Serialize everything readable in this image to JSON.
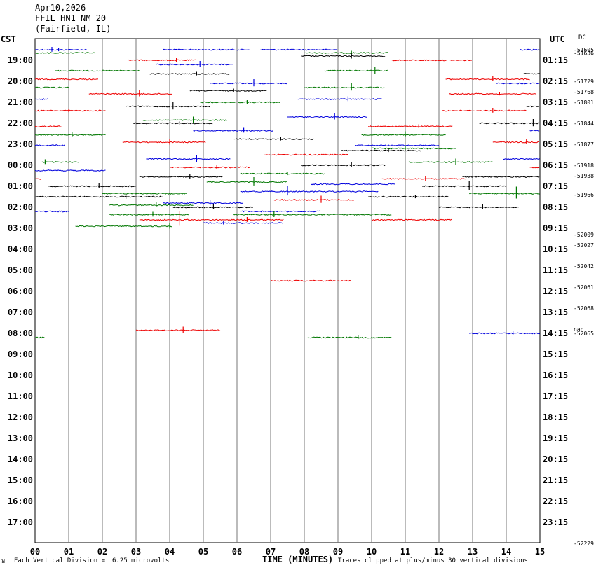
{
  "header": {
    "date": "Apr10,2026",
    "station": "FFIL HN1 NM 20",
    "location": "(Fairfield, IL)"
  },
  "labels": {
    "left_tz": "CST",
    "right_tz": "UTC",
    "dc": "DC",
    "xlabel": "TIME (MINUTES)",
    "footer_left_mark": "ᴚ",
    "vertical_division": "Each Vertical Division =",
    "microvolts": "6.25 microvolts",
    "clip_note": "Traces clipped at plus/minus 30 vertical divisions"
  },
  "chart_data": {
    "type": "line",
    "title": "",
    "xlabel": "TIME (MINUTES)",
    "xlim": [
      0,
      15
    ],
    "x_ticks": [
      "00",
      "01",
      "02",
      "03",
      "04",
      "05",
      "06",
      "07",
      "08",
      "09",
      "10",
      "11",
      "12",
      "13",
      "14",
      "15"
    ],
    "rows_per_hour": 2,
    "left_hour_labels": [
      "19:00",
      "20:00",
      "21:00",
      "22:00",
      "23:00",
      "00:00",
      "01:00",
      "02:00",
      "03:00",
      "04:00",
      "05:00",
      "06:00",
      "07:00",
      "08:00",
      "09:00",
      "10:00",
      "11:00",
      "12:00",
      "13:00",
      "14:00",
      "15:00",
      "16:00",
      "17:00"
    ],
    "right_hour_labels": [
      "01:15",
      "02:15",
      "03:15",
      "04:15",
      "05:15",
      "06:15",
      "07:15",
      "08:15",
      "09:15",
      "10:15",
      "11:15",
      "12:15",
      "13:15",
      "14:15",
      "15:15",
      "16:15",
      "17:15",
      "18:15",
      "19:15",
      "20:15",
      "21:15",
      "22:15",
      "23:15"
    ],
    "dc_offsets": [
      {
        "row": 0,
        "value": "-51605"
      },
      {
        "row": 0.3,
        "value": "-51636"
      },
      {
        "row": 3,
        "value": "-51729"
      },
      {
        "row": 4,
        "value": "-51768"
      },
      {
        "row": 5,
        "value": "-51801"
      },
      {
        "row": 7,
        "value": "-51844"
      },
      {
        "row": 9,
        "value": "-51877"
      },
      {
        "row": 11,
        "value": "-51918"
      },
      {
        "row": 12,
        "value": "-51938"
      },
      {
        "row": 13.8,
        "value": "-51966"
      },
      {
        "row": 17.6,
        "value": "-52009"
      },
      {
        "row": 18.6,
        "value": "-52027"
      },
      {
        "row": 20.6,
        "value": "-52042"
      },
      {
        "row": 22.6,
        "value": "-52061"
      },
      {
        "row": 24.6,
        "value": "-52068"
      },
      {
        "row": 26.6,
        "value": "nan"
      },
      {
        "row": 27,
        "value": "-52065"
      },
      {
        "row": 47,
        "value": "-52229"
      }
    ],
    "series_colors": [
      "#000000",
      "#ee0000",
      "#0000dd",
      "#007700"
    ],
    "traces": [
      {
        "row": 0,
        "color": 2,
        "segments": [
          [
            0.0,
            1.55
          ],
          [
            3.8,
            6.4
          ],
          [
            6.7,
            9.0
          ],
          [
            14.4,
            15.0
          ]
        ],
        "spikes": [
          [
            0.5,
            4
          ],
          [
            0.7,
            3
          ]
        ]
      },
      {
        "row": 0.3,
        "color": 3,
        "segments": [
          [
            0.0,
            1.8
          ],
          [
            8.0,
            10.5
          ]
        ],
        "spikes": [
          [
            9.4,
            3
          ]
        ]
      },
      {
        "row": 0.6,
        "color": 0,
        "segments": [
          [
            7.9,
            10.4
          ]
        ],
        "spikes": [
          [
            9.4,
            5
          ]
        ]
      },
      {
        "row": 1,
        "color": 1,
        "segments": [
          [
            2.75,
            4.8
          ],
          [
            10.6,
            13.0
          ]
        ],
        "spikes": [
          [
            4.2,
            3
          ]
        ]
      },
      {
        "row": 1.4,
        "color": 2,
        "segments": [
          [
            3.6,
            5.9
          ]
        ],
        "spikes": [
          [
            4.9,
            5
          ]
        ]
      },
      {
        "row": 2,
        "color": 3,
        "segments": [
          [
            0.6,
            3.1
          ],
          [
            8.6,
            10.5
          ]
        ],
        "spikes": [
          [
            10.1,
            6
          ]
        ]
      },
      {
        "row": 2.3,
        "color": 0,
        "segments": [
          [
            3.4,
            5.8
          ],
          [
            14.5,
            15.0
          ]
        ],
        "spikes": [
          [
            4.8,
            3
          ]
        ]
      },
      {
        "row": 2.8,
        "color": 1,
        "segments": [
          [
            0.0,
            1.9
          ],
          [
            12.2,
            14.7
          ]
        ],
        "spikes": [
          [
            13.6,
            4
          ]
        ]
      },
      {
        "row": 3.2,
        "color": 2,
        "segments": [
          [
            5.2,
            7.5
          ],
          [
            13.7,
            15.0
          ]
        ],
        "spikes": [
          [
            6.5,
            6
          ]
        ]
      },
      {
        "row": 3.6,
        "color": 3,
        "segments": [
          [
            0.0,
            1.0
          ],
          [
            8.0,
            10.4
          ]
        ],
        "spikes": [
          [
            9.4,
            6
          ]
        ]
      },
      {
        "row": 3.9,
        "color": 0,
        "segments": [
          [
            4.6,
            6.9
          ]
        ],
        "spikes": [
          [
            5.9,
            3
          ]
        ]
      },
      {
        "row": 4.2,
        "color": 1,
        "segments": [
          [
            1.6,
            4.1
          ],
          [
            12.3,
            14.9
          ]
        ],
        "spikes": [
          [
            3.1,
            5
          ],
          [
            13.8,
            3
          ]
        ]
      },
      {
        "row": 4.7,
        "color": 2,
        "segments": [
          [
            0.0,
            0.4
          ],
          [
            7.8,
            10.3
          ]
        ],
        "spikes": [
          [
            9.3,
            4
          ]
        ]
      },
      {
        "row": 5,
        "color": 3,
        "segments": [
          [
            4.9,
            7.3
          ]
        ],
        "spikes": [
          [
            6.3,
            3
          ]
        ]
      },
      {
        "row": 5.4,
        "color": 0,
        "segments": [
          [
            2.7,
            5.2
          ],
          [
            14.6,
            15.0
          ]
        ],
        "spikes": [
          [
            4.1,
            6
          ]
        ]
      },
      {
        "row": 5.8,
        "color": 1,
        "segments": [
          [
            0.0,
            2.1
          ],
          [
            12.1,
            14.6
          ]
        ],
        "spikes": [
          [
            1.0,
            3
          ],
          [
            13.6,
            4
          ]
        ]
      },
      {
        "row": 6.4,
        "color": 2,
        "segments": [
          [
            7.5,
            9.9
          ]
        ],
        "spikes": [
          [
            8.9,
            5
          ]
        ]
      },
      {
        "row": 6.7,
        "color": 3,
        "segments": [
          [
            3.2,
            5.7
          ]
        ],
        "spikes": [
          [
            4.7,
            5
          ]
        ]
      },
      {
        "row": 7,
        "color": 0,
        "segments": [
          [
            2.9,
            5.3
          ],
          [
            13.2,
            15.0
          ]
        ],
        "spikes": [
          [
            4.3,
            3
          ],
          [
            14.8,
            6
          ]
        ]
      },
      {
        "row": 7.3,
        "color": 1,
        "segments": [
          [
            0.0,
            0.8
          ],
          [
            9.9,
            12.4
          ]
        ],
        "spikes": [
          [
            11.4,
            3
          ]
        ]
      },
      {
        "row": 7.7,
        "color": 2,
        "segments": [
          [
            4.7,
            7.1
          ],
          [
            14.7,
            15.0
          ]
        ],
        "spikes": [
          [
            6.2,
            4
          ]
        ]
      },
      {
        "row": 8.1,
        "color": 3,
        "segments": [
          [
            0.0,
            2.1
          ],
          [
            9.7,
            12.2
          ]
        ],
        "spikes": [
          [
            1.1,
            4
          ],
          [
            11.0,
            5
          ]
        ]
      },
      {
        "row": 8.5,
        "color": 0,
        "segments": [
          [
            5.9,
            8.3
          ]
        ],
        "spikes": [
          [
            7.3,
            3
          ]
        ]
      },
      {
        "row": 8.8,
        "color": 1,
        "segments": [
          [
            2.6,
            5.1
          ],
          [
            13.6,
            15.0
          ]
        ],
        "spikes": [
          [
            4.0,
            5
          ],
          [
            14.6,
            4
          ]
        ]
      },
      {
        "row": 9.1,
        "color": 2,
        "segments": [
          [
            0.0,
            0.9
          ],
          [
            9.5,
            12.0
          ]
        ],
        "spikes": []
      },
      {
        "row": 9.4,
        "color": 3,
        "segments": [
          [
            10.0,
            12.5
          ]
        ],
        "spikes": [
          [
            11.0,
            3
          ]
        ]
      },
      {
        "row": 9.6,
        "color": 0,
        "segments": [
          [
            9.1,
            11.5
          ]
        ],
        "spikes": [
          [
            10.5,
            3
          ]
        ]
      },
      {
        "row": 10,
        "color": 1,
        "segments": [
          [
            6.8,
            9.3
          ]
        ],
        "spikes": []
      },
      {
        "row": 10.4,
        "color": 2,
        "segments": [
          [
            3.3,
            5.8
          ],
          [
            13.9,
            15.0
          ]
        ],
        "spikes": [
          [
            4.8,
            6
          ]
        ]
      },
      {
        "row": 10.7,
        "color": 3,
        "segments": [
          [
            0.2,
            1.3
          ],
          [
            11.1,
            13.6
          ]
        ],
        "spikes": [
          [
            0.3,
            4
          ],
          [
            12.5,
            5
          ]
        ]
      },
      {
        "row": 11,
        "color": 0,
        "segments": [
          [
            7.9,
            10.4
          ]
        ],
        "spikes": [
          [
            9.4,
            4
          ]
        ]
      },
      {
        "row": 11.2,
        "color": 1,
        "segments": [
          [
            4.0,
            6.4
          ],
          [
            14.7,
            15.0
          ]
        ],
        "spikes": [
          [
            5.4,
            4
          ]
        ]
      },
      {
        "row": 11.5,
        "color": 2,
        "segments": [
          [
            0.0,
            2.1
          ]
        ],
        "spikes": []
      },
      {
        "row": 11.8,
        "color": 3,
        "segments": [
          [
            6.1,
            8.6
          ]
        ],
        "spikes": [
          [
            7.5,
            3
          ]
        ]
      },
      {
        "row": 12.1,
        "color": 0,
        "segments": [
          [
            3.1,
            5.6
          ],
          [
            12.7,
            15.0
          ]
        ],
        "spikes": [
          [
            4.6,
            4
          ]
        ]
      },
      {
        "row": 12.3,
        "color": 1,
        "segments": [
          [
            0.0,
            0.2
          ],
          [
            10.3,
            12.8
          ]
        ],
        "spikes": [
          [
            11.6,
            4
          ]
        ]
      },
      {
        "row": 12.6,
        "color": 3,
        "segments": [
          [
            5.1,
            7.5
          ]
        ],
        "spikes": [
          [
            6.5,
            7
          ]
        ]
      },
      {
        "row": 12.8,
        "color": 2,
        "segments": [
          [
            8.2,
            10.7
          ]
        ],
        "spikes": []
      },
      {
        "row": 13,
        "color": 0,
        "segments": [
          [
            0.4,
            3.0
          ],
          [
            11.5,
            14.0
          ]
        ],
        "spikes": [
          [
            1.9,
            4
          ],
          [
            12.9,
            8
          ]
        ]
      },
      {
        "row": 13.5,
        "color": 2,
        "segments": [
          [
            6.1,
            10.2
          ]
        ],
        "spikes": [
          [
            7.5,
            8
          ]
        ]
      },
      {
        "row": 13.7,
        "color": 3,
        "segments": [
          [
            2.0,
            4.5
          ],
          [
            12.9,
            15.0
          ]
        ],
        "spikes": [
          [
            14.3,
            10
          ]
        ]
      },
      {
        "row": 14,
        "color": 0,
        "segments": [
          [
            0.0,
            3.8
          ],
          [
            9.9,
            12.3
          ]
        ],
        "spikes": [
          [
            2.7,
            4
          ],
          [
            11.3,
            3
          ]
        ]
      },
      {
        "row": 14.3,
        "color": 1,
        "segments": [
          [
            7.1,
            9.5
          ]
        ],
        "spikes": [
          [
            8.5,
            6
          ]
        ]
      },
      {
        "row": 14.6,
        "color": 2,
        "segments": [
          [
            3.8,
            6.2
          ]
        ],
        "spikes": [
          [
            5.2,
            5
          ]
        ]
      },
      {
        "row": 14.8,
        "color": 3,
        "segments": [
          [
            2.2,
            4.7
          ]
        ],
        "spikes": [
          [
            3.6,
            4
          ]
        ]
      },
      {
        "row": 15,
        "color": 0,
        "segments": [
          [
            4.1,
            6.5
          ],
          [
            12.0,
            14.4
          ]
        ],
        "spikes": [
          [
            5.3,
            4
          ],
          [
            13.3,
            4
          ]
        ]
      },
      {
        "row": 15.4,
        "color": 2,
        "segments": [
          [
            0.0,
            1.0
          ],
          [
            6.1,
            8.5
          ]
        ],
        "spikes": []
      },
      {
        "row": 15.7,
        "color": 3,
        "segments": [
          [
            2.2,
            4.6
          ],
          [
            5.9,
            10.6
          ]
        ],
        "spikes": [
          [
            3.5,
            4
          ],
          [
            7.1,
            5
          ]
        ]
      },
      {
        "row": 16.2,
        "color": 1,
        "segments": [
          [
            3.1,
            7.4
          ],
          [
            10.0,
            12.4
          ]
        ],
        "spikes": [
          [
            4.3,
            12
          ],
          [
            6.3,
            4
          ]
        ]
      },
      {
        "row": 16.5,
        "color": 2,
        "segments": [
          [
            5.0,
            7.4
          ]
        ],
        "spikes": [
          [
            5.6,
            3
          ]
        ]
      },
      {
        "row": 16.8,
        "color": 3,
        "segments": [
          [
            1.2,
            4.1
          ]
        ],
        "spikes": [
          [
            4.0,
            5
          ]
        ]
      },
      {
        "row": 22,
        "color": 1,
        "segments": [
          [
            7.0,
            9.4
          ]
        ],
        "spikes": []
      },
      {
        "row": 26.7,
        "color": 1,
        "segments": [
          [
            3.0,
            5.5
          ]
        ],
        "spikes": [
          [
            4.4,
            5
          ]
        ]
      },
      {
        "row": 27,
        "color": 2,
        "segments": [
          [
            12.9,
            15.0
          ]
        ],
        "spikes": [
          [
            14.2,
            3
          ]
        ]
      },
      {
        "row": 27.4,
        "color": 3,
        "segments": [
          [
            0.0,
            0.3
          ],
          [
            8.1,
            10.6
          ]
        ],
        "spikes": [
          [
            9.6,
            3
          ]
        ]
      }
    ]
  }
}
